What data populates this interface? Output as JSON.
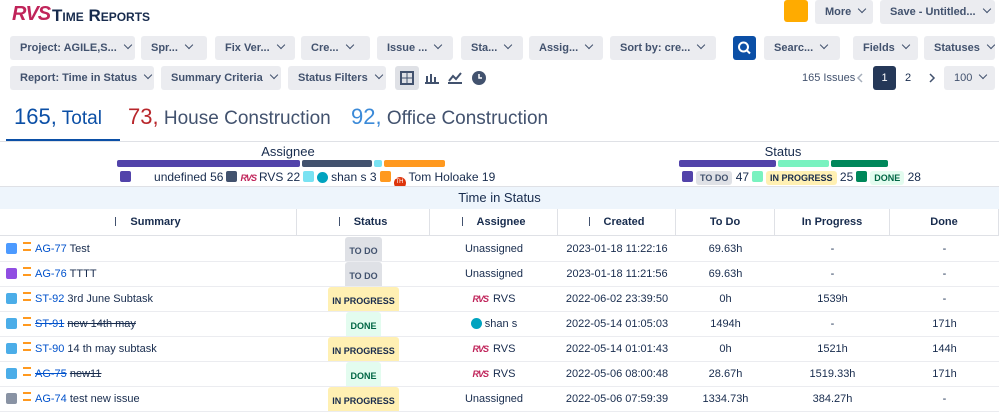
{
  "header": {
    "logo": "RVS",
    "title": "Time Reports",
    "more": "More",
    "save": "Save - Untitled..."
  },
  "filters": [
    "Project: AGILE,S...",
    "Spr...",
    "Fix Ver...",
    "Cre...",
    "Issue ...",
    "Sta...",
    "Assig...",
    "Sort by: cre...",
    "Searc...",
    "Fields",
    "Statuses"
  ],
  "toolbar": {
    "report": "Report: Time in Status",
    "summary": "Summary Criteria",
    "status_filters": "Status Filters",
    "issue_count": "165 Issues",
    "pages": [
      "1",
      "2"
    ],
    "page_size": "100"
  },
  "totals": [
    {
      "value": 165,
      "label": "Total",
      "color": "#0b4fa6"
    },
    {
      "value": 73,
      "label": "House Construction",
      "color": "#b8262b"
    },
    {
      "value": 92,
      "label": "Office Construction",
      "color": "#3b8ad8"
    }
  ],
  "assignee_summary": {
    "title": "Assignee",
    "items": [
      {
        "name": "undefined",
        "count": 56,
        "color": "#5243aa",
        "avatar": "none"
      },
      {
        "name": "RVS",
        "count": 22,
        "color": "#42526e",
        "avatar": "logo"
      },
      {
        "name": "shan s",
        "count": 3,
        "color": "#79e2f2",
        "avatar": "circle"
      },
      {
        "name": "Tom Holoake",
        "count": 19,
        "color": "#ff991f",
        "avatar": "TH"
      }
    ]
  },
  "status_summary": {
    "title": "Status",
    "items": [
      {
        "name": "TO DO",
        "count": 47,
        "color": "#5243aa"
      },
      {
        "name": "IN PROGRESS",
        "count": 25,
        "color": "#79f2c0"
      },
      {
        "name": "DONE",
        "count": 28,
        "color": "#00875a"
      }
    ]
  },
  "table": {
    "title": "Time in Status",
    "columns": [
      "Summary",
      "Status",
      "Assignee",
      "Created",
      "To Do",
      "In Progress",
      "Done"
    ],
    "rows": [
      {
        "icon_color": "#4c9aff",
        "key": "AG-77",
        "summary": "Test",
        "status": "TO DO",
        "assignee": "Unassigned",
        "created": "2023-01-18 11:22:16",
        "to_do": "69.63h",
        "in_progress": "-",
        "done": "-",
        "strike": false
      },
      {
        "icon_color": "#904ee2",
        "key": "AG-76",
        "summary": "TTTT",
        "status": "TO DO",
        "assignee": "Unassigned",
        "created": "2023-01-18 11:21:56",
        "to_do": "69.63h",
        "in_progress": "-",
        "done": "-",
        "strike": false
      },
      {
        "icon_color": "#4bade8",
        "key": "ST-92",
        "summary": "3rd June Subtask",
        "status": "IN PROGRESS",
        "assignee": "RVS",
        "created": "2022-06-02 23:39:50",
        "to_do": "0h",
        "in_progress": "1539h",
        "done": "-",
        "strike": false
      },
      {
        "icon_color": "#4bade8",
        "key": "ST-91",
        "summary": "new 14th may",
        "status": "DONE",
        "assignee": "shan s",
        "created": "2022-05-14 01:05:03",
        "to_do": "1494h",
        "in_progress": "-",
        "done": "171h",
        "strike": true
      },
      {
        "icon_color": "#4bade8",
        "key": "ST-90",
        "summary": "14 th may subtask",
        "status": "IN PROGRESS",
        "assignee": "RVS",
        "created": "2022-05-14 01:01:43",
        "to_do": "0h",
        "in_progress": "1521h",
        "done": "144h",
        "strike": false
      },
      {
        "icon_color": "#4bade8",
        "key": "AG-75",
        "summary": "new11",
        "status": "DONE",
        "assignee": "RVS",
        "created": "2022-05-06 08:00:48",
        "to_do": "28.67h",
        "in_progress": "1519.33h",
        "done": "171h",
        "strike": true
      },
      {
        "icon_color": "#8993a4",
        "key": "AG-74",
        "summary": "test new issue",
        "status": "IN PROGRESS",
        "assignee": "Unassigned",
        "created": "2022-05-06 07:59:39",
        "to_do": "1334.73h",
        "in_progress": "384.27h",
        "done": "-",
        "strike": false
      }
    ]
  }
}
